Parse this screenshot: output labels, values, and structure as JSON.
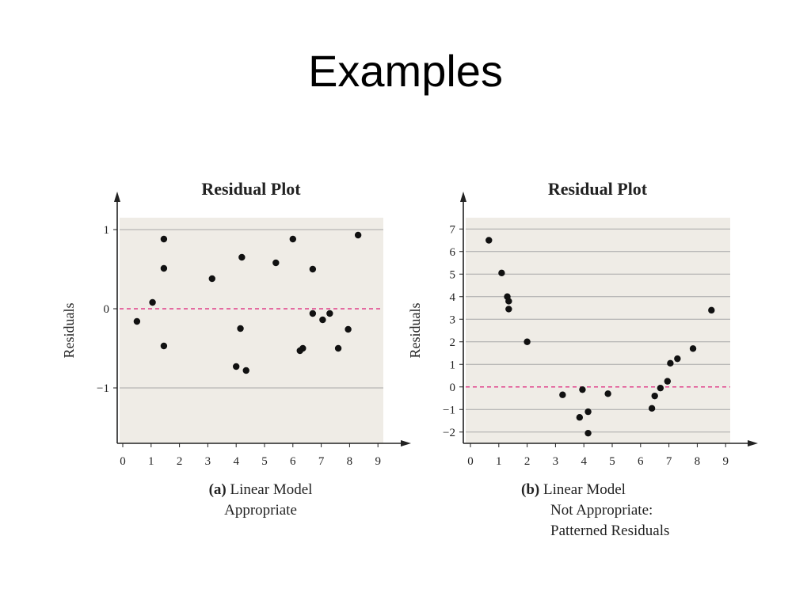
{
  "page": {
    "title": "Examples"
  },
  "colors": {
    "plot_bg": "#efece6",
    "grid": "#a8a8a8",
    "zero_line": "#e0408a",
    "point": "#111111",
    "axis": "#222222"
  },
  "chart_data": [
    {
      "type": "scatter",
      "title": "Residual Plot",
      "ylabel": "Residuals",
      "xlabel": "",
      "xlim": [
        0,
        9
      ],
      "ylim": [
        -1.7,
        1.15
      ],
      "xticks": [
        0,
        1,
        2,
        3,
        4,
        5,
        6,
        7,
        8,
        9
      ],
      "yticks": [
        1,
        0,
        -1
      ],
      "ytick_labels": [
        "1",
        "0",
        "−1"
      ],
      "grid": true,
      "reference_line": 0,
      "caption_bold": "(a)",
      "caption_lines": [
        "Linear Model",
        "Appropriate"
      ],
      "points": [
        {
          "x": 0.5,
          "y": -0.16
        },
        {
          "x": 1.05,
          "y": 0.08
        },
        {
          "x": 1.45,
          "y": 0.88
        },
        {
          "x": 1.45,
          "y": 0.51
        },
        {
          "x": 1.45,
          "y": -0.47
        },
        {
          "x": 3.15,
          "y": 0.38
        },
        {
          "x": 4.0,
          "y": -0.73
        },
        {
          "x": 4.15,
          "y": -0.25
        },
        {
          "x": 4.2,
          "y": 0.65
        },
        {
          "x": 4.35,
          "y": -0.78
        },
        {
          "x": 5.4,
          "y": 0.58
        },
        {
          "x": 6.0,
          "y": 0.88
        },
        {
          "x": 6.25,
          "y": -0.53
        },
        {
          "x": 6.35,
          "y": -0.5
        },
        {
          "x": 6.7,
          "y": 0.5
        },
        {
          "x": 6.7,
          "y": -0.06
        },
        {
          "x": 7.05,
          "y": -0.14
        },
        {
          "x": 7.3,
          "y": -0.06
        },
        {
          "x": 7.6,
          "y": -0.5
        },
        {
          "x": 7.95,
          "y": -0.26
        },
        {
          "x": 8.3,
          "y": 0.93
        }
      ]
    },
    {
      "type": "scatter",
      "title": "Residual Plot",
      "ylabel": "Residuals",
      "xlabel": "",
      "xlim": [
        0,
        9
      ],
      "ylim": [
        -2.5,
        7.5
      ],
      "xticks": [
        0,
        1,
        2,
        3,
        4,
        5,
        6,
        7,
        8,
        9
      ],
      "yticks": [
        7,
        6,
        5,
        4,
        3,
        2,
        1,
        0,
        -1,
        -2
      ],
      "ytick_labels": [
        "7",
        "6",
        "5",
        "4",
        "3",
        "2",
        "1",
        "0",
        "−1",
        "−2"
      ],
      "grid": true,
      "reference_line": 0,
      "caption_bold": "(b)",
      "caption_lines": [
        "Linear Model",
        "Not Appropriate:",
        "Patterned Residuals"
      ],
      "points": [
        {
          "x": 0.65,
          "y": 6.5
        },
        {
          "x": 1.1,
          "y": 5.05
        },
        {
          "x": 1.3,
          "y": 4.0
        },
        {
          "x": 1.35,
          "y": 3.8
        },
        {
          "x": 1.35,
          "y": 3.45
        },
        {
          "x": 2.0,
          "y": 2.0
        },
        {
          "x": 3.25,
          "y": -0.35
        },
        {
          "x": 3.85,
          "y": -1.35
        },
        {
          "x": 3.95,
          "y": -0.12
        },
        {
          "x": 4.15,
          "y": -1.1
        },
        {
          "x": 4.15,
          "y": -2.05
        },
        {
          "x": 4.85,
          "y": -0.3
        },
        {
          "x": 6.4,
          "y": -0.95
        },
        {
          "x": 6.5,
          "y": -0.4
        },
        {
          "x": 6.7,
          "y": -0.05
        },
        {
          "x": 6.95,
          "y": 0.25
        },
        {
          "x": 7.05,
          "y": 1.05
        },
        {
          "x": 7.3,
          "y": 1.25
        },
        {
          "x": 7.85,
          "y": 1.7
        },
        {
          "x": 8.5,
          "y": 3.4
        }
      ]
    }
  ]
}
